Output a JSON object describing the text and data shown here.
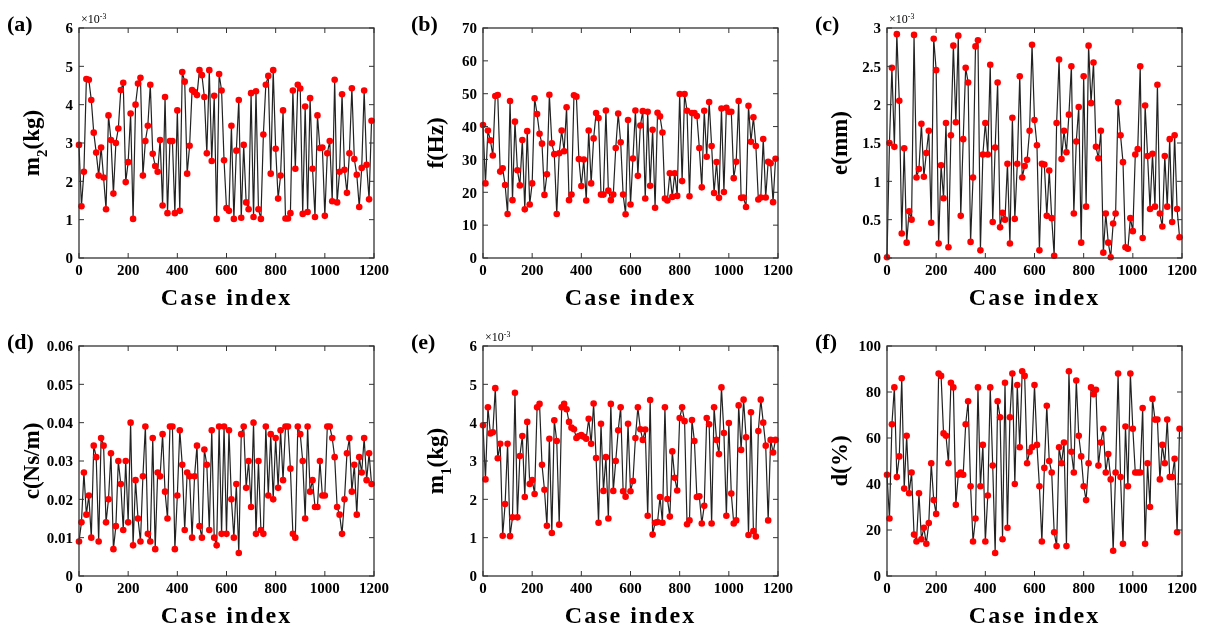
{
  "chart_data": [
    {
      "type": "line",
      "title": "(a)",
      "xlabel": "Case index",
      "ylabel": "m$_{2}$(kg)",
      "annotations": [
        "×10$^{-3}$"
      ],
      "marker": "circle",
      "xlim": [
        0,
        1200
      ],
      "xticks": [
        0,
        200,
        400,
        600,
        800,
        1000,
        1200
      ],
      "ylim": [
        0,
        6
      ],
      "yticks": [
        0,
        1,
        2,
        3,
        4,
        5,
        6
      ],
      "x": [
        0,
        10,
        20,
        30,
        40,
        50,
        60,
        70,
        80,
        90,
        100,
        110,
        120,
        130,
        140,
        150,
        160,
        170,
        180,
        190,
        200,
        210,
        220,
        230,
        240,
        250,
        260,
        270,
        280,
        290,
        300,
        310,
        320,
        330,
        340,
        350,
        360,
        370,
        380,
        390,
        400,
        410,
        420,
        430,
        440,
        450,
        460,
        470,
        480,
        490,
        500,
        510,
        520,
        530,
        540,
        550,
        560,
        570,
        580,
        590,
        600,
        610,
        620,
        630,
        640,
        650,
        660,
        670,
        680,
        690,
        700,
        710,
        720,
        730,
        740,
        750,
        760,
        770,
        780,
        790,
        800,
        810,
        820,
        830,
        840,
        850,
        860,
        870,
        880,
        890,
        900,
        910,
        920,
        930,
        940,
        950,
        960,
        970,
        980,
        990,
        1000,
        1010,
        1020,
        1030,
        1040,
        1050,
        1060,
        1070,
        1080,
        1090,
        1100,
        1110,
        1120,
        1130,
        1140,
        1150,
        1160,
        1170,
        1180,
        1190
      ],
      "series": [
        {
          "color": "#ff0000",
          "values": [
            2.95,
            1.35,
            2.25,
            4.67,
            4.65,
            4.12,
            3.27,
            2.75,
            2.15,
            2.88,
            2.1,
            1.27,
            3.72,
            3.08,
            1.68,
            3.0,
            3.38,
            4.38,
            4.57,
            1.98,
            2.5,
            3.77,
            1.02,
            4.0,
            4.55,
            4.7,
            2.15,
            3.05,
            3.45,
            4.52,
            2.72,
            2.4,
            2.25,
            3.08,
            1.37,
            4.2,
            1.17,
            3.05,
            3.05,
            1.17,
            3.85,
            1.23,
            4.85,
            4.6,
            2.2,
            2.93,
            4.38,
            4.33,
            4.25,
            4.9,
            4.77,
            4.2,
            2.73,
            4.9,
            2.53,
            4.23,
            1.02,
            4.8,
            4.37,
            2.55,
            1.3,
            1.23,
            3.45,
            1.02,
            2.8,
            4.12,
            1.05,
            2.95,
            1.45,
            1.27,
            4.3,
            1.07,
            4.35,
            1.27,
            1.02,
            3.22,
            4.52,
            4.75,
            2.2,
            4.9,
            2.85,
            1.55,
            2.15,
            3.85,
            1.03,
            1.03,
            1.17,
            4.37,
            2.33,
            4.52,
            4.42,
            1.15,
            3.95,
            1.2,
            4.17,
            2.33,
            1.07,
            3.72,
            2.87,
            2.88,
            1.1,
            2.73,
            3.05,
            1.48,
            4.65,
            1.45,
            2.25,
            4.27,
            2.3,
            1.7,
            2.73,
            4.43,
            2.58,
            2.17,
            1.33,
            2.35,
            4.37,
            2.43,
            1.53,
            3.58
          ]
        }
      ]
    },
    {
      "type": "line",
      "title": "(b)",
      "xlabel": "Case index",
      "ylabel": "f(Hz)",
      "marker": "circle",
      "xlim": [
        0,
        1200
      ],
      "xticks": [
        0,
        200,
        400,
        600,
        800,
        1000,
        1200
      ],
      "ylim": [
        0,
        70
      ],
      "yticks": [
        0,
        10,
        20,
        30,
        40,
        50,
        60,
        70
      ],
      "x": [
        0,
        10,
        20,
        30,
        40,
        50,
        60,
        70,
        80,
        90,
        100,
        110,
        120,
        130,
        140,
        150,
        160,
        170,
        180,
        190,
        200,
        210,
        220,
        230,
        240,
        250,
        260,
        270,
        280,
        290,
        300,
        310,
        320,
        330,
        340,
        350,
        360,
        370,
        380,
        390,
        400,
        410,
        420,
        430,
        440,
        450,
        460,
        470,
        480,
        490,
        500,
        510,
        520,
        530,
        540,
        550,
        560,
        570,
        580,
        590,
        600,
        610,
        620,
        630,
        640,
        650,
        660,
        670,
        680,
        690,
        700,
        710,
        720,
        730,
        740,
        750,
        760,
        770,
        780,
        790,
        800,
        810,
        820,
        830,
        840,
        850,
        860,
        870,
        880,
        890,
        900,
        910,
        920,
        930,
        940,
        950,
        960,
        970,
        980,
        990,
        1000,
        1010,
        1020,
        1030,
        1040,
        1050,
        1060,
        1070,
        1080,
        1090,
        1100,
        1110,
        1120,
        1130,
        1140,
        1150,
        1160,
        1170,
        1180,
        1190
      ],
      "series": [
        {
          "color": "#ff0000",
          "values": [
            40.5,
            22.7,
            38.8,
            35.8,
            31.2,
            49.3,
            49.6,
            26.3,
            27.3,
            22.2,
            13.4,
            47.8,
            17.6,
            41.5,
            26.7,
            22.1,
            35.9,
            14.8,
            38.6,
            16.3,
            22.7,
            48.6,
            43.8,
            37.8,
            34.8,
            19.2,
            25.5,
            49.7,
            34.9,
            31.6,
            13.4,
            31.9,
            38.8,
            32.5,
            45.9,
            17.6,
            19.3,
            49.5,
            49.1,
            30.1,
            21.9,
            30.0,
            17.5,
            38.8,
            22.7,
            36.4,
            44.1,
            42.6,
            19.3,
            19.3,
            44.9,
            20.5,
            17.6,
            19.3,
            33.5,
            44.0,
            35.2,
            19.3,
            13.3,
            42.0,
            16.3,
            30.3,
            44.9,
            25.0,
            40.3,
            44.7,
            18.1,
            44.5,
            22.0,
            39.0,
            15.3,
            44.2,
            43.1,
            38.2,
            18.1,
            17.5,
            25.8,
            18.6,
            25.8,
            18.9,
            49.9,
            23.4,
            49.9,
            44.8,
            18.8,
            44.1,
            44.1,
            43.2,
            33.5,
            21.5,
            44.8,
            30.8,
            47.5,
            34.1,
            19.8,
            29.2,
            18.3,
            45.5,
            20.1,
            45.7,
            44.5,
            44.5,
            24.3,
            29.3,
            47.8,
            18.3,
            18.4,
            15.5,
            46.3,
            35.4,
            42.8,
            34.1,
            17.8,
            18.4,
            36.2,
            18.4,
            29.3,
            28.8,
            17.0,
            30.2
          ]
        }
      ]
    },
    {
      "type": "line",
      "title": "(c)",
      "xlabel": "Case index",
      "ylabel": "e(mm)",
      "annotations": [
        "×10$^{-3}$"
      ],
      "marker": "circle",
      "xlim": [
        0,
        1200
      ],
      "xticks": [
        0,
        200,
        400,
        600,
        800,
        1000,
        1200
      ],
      "ylim": [
        0,
        3
      ],
      "yticks": [
        0,
        0.5,
        1,
        1.5,
        2,
        2.5,
        3
      ],
      "x": [
        0,
        10,
        20,
        30,
        40,
        50,
        60,
        70,
        80,
        90,
        100,
        110,
        120,
        130,
        140,
        150,
        160,
        170,
        180,
        190,
        200,
        210,
        220,
        230,
        240,
        250,
        260,
        270,
        280,
        290,
        300,
        310,
        320,
        330,
        340,
        350,
        360,
        370,
        380,
        390,
        400,
        410,
        420,
        430,
        440,
        450,
        460,
        470,
        480,
        490,
        500,
        510,
        520,
        530,
        540,
        550,
        560,
        570,
        580,
        590,
        600,
        610,
        620,
        630,
        640,
        650,
        660,
        670,
        680,
        690,
        700,
        710,
        720,
        730,
        740,
        750,
        760,
        770,
        780,
        790,
        800,
        810,
        820,
        830,
        840,
        850,
        860,
        870,
        880,
        890,
        900,
        910,
        920,
        930,
        940,
        950,
        960,
        970,
        980,
        990,
        1000,
        1010,
        1020,
        1030,
        1040,
        1050,
        1060,
        1070,
        1080,
        1090,
        1100,
        1110,
        1120,
        1130,
        1140,
        1150,
        1160,
        1170,
        1180,
        1190
      ],
      "series": [
        {
          "color": "#ff0000",
          "values": [
            0.01,
            1.5,
            2.48,
            1.45,
            2.92,
            2.05,
            0.32,
            1.43,
            0.2,
            0.61,
            0.5,
            2.91,
            1.05,
            1.16,
            1.75,
            1.06,
            1.37,
            1.66,
            0.46,
            2.86,
            2.45,
            0.19,
            1.21,
            0.78,
            1.76,
            0.14,
            1.6,
            2.77,
            1.77,
            2.9,
            0.55,
            1.55,
            2.48,
            2.29,
            0.21,
            1.05,
            2.76,
            2.84,
            0.1,
            1.35,
            1.76,
            1.35,
            2.52,
            0.47,
            1.44,
            2.29,
            0.4,
            0.59,
            0.5,
            1.23,
            0.19,
            1.83,
            0.51,
            1.23,
            2.37,
            1.05,
            1.2,
            1.28,
            1.66,
            2.78,
            1.8,
            1.47,
            0.1,
            1.23,
            1.22,
            0.55,
            1.14,
            0.52,
            0.03,
            1.76,
            2.59,
            1.29,
            1.66,
            1.38,
            1.87,
            2.5,
            0.58,
            1.52,
            1.97,
            0.2,
            2.37,
            0.67,
            2.77,
            2.02,
            2.55,
            1.45,
            1.3,
            1.66,
            0.07,
            0.58,
            0.2,
            0.01,
            0.45,
            0.58,
            2.03,
            1.6,
            1.25,
            0.14,
            0.12,
            0.52,
            0.35,
            1.35,
            1.42,
            2.5,
            0.26,
            1.99,
            1.33,
            0.64,
            1.36,
            0.67,
            2.26,
            0.58,
            0.41,
            1.33,
            0.67,
            1.55,
            0.47,
            1.6,
            0.64,
            0.27
          ]
        }
      ]
    },
    {
      "type": "line",
      "title": "(d)",
      "xlabel": "Case index",
      "ylabel": "c(Ns/m)",
      "marker": "circle",
      "xlim": [
        0,
        1200
      ],
      "xticks": [
        0,
        200,
        400,
        600,
        800,
        1000,
        1200
      ],
      "ylim": [
        0,
        0.06
      ],
      "yticks": [
        0,
        0.01,
        0.02,
        0.03,
        0.04,
        0.05,
        0.06
      ],
      "x": [
        0,
        10,
        20,
        30,
        40,
        50,
        60,
        70,
        80,
        90,
        100,
        110,
        120,
        130,
        140,
        150,
        160,
        170,
        180,
        190,
        200,
        210,
        220,
        230,
        240,
        250,
        260,
        270,
        280,
        290,
        300,
        310,
        320,
        330,
        340,
        350,
        360,
        370,
        380,
        390,
        400,
        410,
        420,
        430,
        440,
        450,
        460,
        470,
        480,
        490,
        500,
        510,
        520,
        530,
        540,
        550,
        560,
        570,
        580,
        590,
        600,
        610,
        620,
        630,
        640,
        650,
        660,
        670,
        680,
        690,
        700,
        710,
        720,
        730,
        740,
        750,
        760,
        770,
        780,
        790,
        800,
        810,
        820,
        830,
        840,
        850,
        860,
        870,
        880,
        890,
        900,
        910,
        920,
        930,
        940,
        950,
        960,
        970,
        980,
        990,
        1000,
        1010,
        1020,
        1030,
        1040,
        1050,
        1060,
        1070,
        1080,
        1090,
        1100,
        1110,
        1120,
        1130,
        1140,
        1150,
        1160,
        1170,
        1180,
        1190
      ],
      "series": [
        {
          "color": "#ff0000",
          "values": [
            0.009,
            0.014,
            0.027,
            0.016,
            0.021,
            0.01,
            0.034,
            0.031,
            0.009,
            0.036,
            0.034,
            0.014,
            0.02,
            0.032,
            0.007,
            0.013,
            0.03,
            0.024,
            0.012,
            0.03,
            0.014,
            0.04,
            0.008,
            0.025,
            0.015,
            0.009,
            0.026,
            0.039,
            0.011,
            0.009,
            0.036,
            0.007,
            0.027,
            0.026,
            0.037,
            0.022,
            0.015,
            0.039,
            0.039,
            0.007,
            0.021,
            0.038,
            0.029,
            0.012,
            0.027,
            0.026,
            0.01,
            0.026,
            0.034,
            0.013,
            0.01,
            0.033,
            0.029,
            0.012,
            0.038,
            0.01,
            0.008,
            0.039,
            0.011,
            0.039,
            0.011,
            0.038,
            0.02,
            0.01,
            0.024,
            0.006,
            0.037,
            0.039,
            0.023,
            0.03,
            0.018,
            0.04,
            0.011,
            0.03,
            0.012,
            0.011,
            0.039,
            0.021,
            0.037,
            0.02,
            0.036,
            0.023,
            0.038,
            0.025,
            0.039,
            0.039,
            0.028,
            0.011,
            0.01,
            0.039,
            0.037,
            0.03,
            0.015,
            0.039,
            0.022,
            0.025,
            0.018,
            0.018,
            0.03,
            0.021,
            0.021,
            0.039,
            0.039,
            0.036,
            0.031,
            0.018,
            0.016,
            0.011,
            0.02,
            0.032,
            0.036,
            0.022,
            0.029,
            0.016,
            0.031,
            0.027,
            0.036,
            0.025,
            0.032,
            0.024
          ]
        }
      ]
    },
    {
      "type": "line",
      "title": "(e)",
      "xlabel": "Case index",
      "ylabel": "m$_{1}$(kg)",
      "annotations": [
        "×10$^{-3}$"
      ],
      "marker": "circle",
      "xlim": [
        0,
        1200
      ],
      "xticks": [
        0,
        200,
        400,
        600,
        800,
        1000,
        1200
      ],
      "ylim": [
        0,
        6
      ],
      "yticks": [
        0,
        1,
        2,
        3,
        4,
        5,
        6
      ],
      "x": [
        0,
        10,
        20,
        30,
        40,
        50,
        60,
        70,
        80,
        90,
        100,
        110,
        120,
        130,
        140,
        150,
        160,
        170,
        180,
        190,
        200,
        210,
        220,
        230,
        240,
        250,
        260,
        270,
        280,
        290,
        300,
        310,
        320,
        330,
        340,
        350,
        360,
        370,
        380,
        390,
        400,
        410,
        420,
        430,
        440,
        450,
        460,
        470,
        480,
        490,
        500,
        510,
        520,
        530,
        540,
        550,
        560,
        570,
        580,
        590,
        600,
        610,
        620,
        630,
        640,
        650,
        660,
        670,
        680,
        690,
        700,
        710,
        720,
        730,
        740,
        750,
        760,
        770,
        780,
        790,
        800,
        810,
        820,
        830,
        840,
        850,
        860,
        870,
        880,
        890,
        900,
        910,
        920,
        930,
        940,
        950,
        960,
        970,
        980,
        990,
        1000,
        1010,
        1020,
        1030,
        1040,
        1050,
        1060,
        1070,
        1080,
        1090,
        1100,
        1110,
        1120,
        1130,
        1140,
        1150,
        1160,
        1170,
        1180,
        1190
      ],
      "series": [
        {
          "color": "#ff0000",
          "values": [
            3.93,
            2.52,
            4.4,
            3.72,
            3.75,
            4.9,
            3.07,
            3.45,
            1.05,
            1.88,
            3.45,
            1.04,
            1.53,
            4.78,
            1.53,
            3.13,
            3.65,
            2.06,
            4.02,
            2.4,
            2.5,
            2.14,
            4.4,
            4.49,
            2.9,
            2.25,
            1.31,
            3.58,
            1.12,
            4.06,
            3.52,
            1.34,
            4.4,
            4.49,
            4.35,
            4.02,
            3.87,
            3.83,
            3.6,
            3.65,
            3.68,
            3.63,
            3.58,
            4.1,
            3.45,
            4.5,
            3.08,
            1.39,
            3.97,
            2.22,
            3.1,
            1.5,
            4.49,
            2.22,
            3.0,
            3.8,
            4.4,
            2.21,
            2.07,
            3.97,
            2.21,
            2.48,
            3.6,
            4.4,
            3.83,
            3.55,
            3.82,
            1.57,
            4.59,
            1.08,
            1.39,
            1.41,
            2.06,
            1.39,
            4.4,
            2.01,
            1.55,
            3.25,
            2.56,
            2.23,
            4.12,
            4.4,
            4.04,
            1.35,
            1.45,
            4.07,
            3.52,
            2.06,
            2.08,
            1.37,
            1.83,
            4.12,
            3.96,
            1.37,
            4.4,
            3.55,
            3.18,
            4.92,
            3.73,
            1.57,
            3.99,
            2.15,
            1.37,
            1.45,
            4.45,
            3.29,
            4.6,
            3.62,
            1.07,
            4.27,
            1.17,
            1.03,
            3.78,
            4.6,
            4.0,
            3.4,
            1.45,
            3.55,
            3.22,
            3.55
          ]
        }
      ]
    },
    {
      "type": "line",
      "title": "(f)",
      "xlabel": "Case index",
      "ylabel": "d(%)",
      "marker": "circle",
      "xlim": [
        0,
        1200
      ],
      "xticks": [
        0,
        200,
        400,
        600,
        800,
        1000,
        1200
      ],
      "ylim": [
        0,
        100
      ],
      "yticks": [
        0,
        20,
        40,
        60,
        80,
        100
      ],
      "x": [
        0,
        10,
        20,
        30,
        40,
        50,
        60,
        70,
        80,
        90,
        100,
        110,
        120,
        130,
        140,
        150,
        160,
        170,
        180,
        190,
        200,
        210,
        220,
        230,
        240,
        250,
        260,
        270,
        280,
        290,
        300,
        310,
        320,
        330,
        340,
        350,
        360,
        370,
        380,
        390,
        400,
        410,
        420,
        430,
        440,
        450,
        460,
        470,
        480,
        490,
        500,
        510,
        520,
        530,
        540,
        550,
        560,
        570,
        580,
        590,
        600,
        610,
        620,
        630,
        640,
        650,
        660,
        670,
        680,
        690,
        700,
        710,
        720,
        730,
        740,
        750,
        760,
        770,
        780,
        790,
        800,
        810,
        820,
        830,
        840,
        850,
        860,
        870,
        880,
        890,
        900,
        910,
        920,
        930,
        940,
        950,
        960,
        970,
        980,
        990,
        1000,
        1010,
        1020,
        1030,
        1040,
        1050,
        1060,
        1070,
        1080,
        1090,
        1100,
        1110,
        1120,
        1130,
        1140,
        1150,
        1160,
        1170,
        1180,
        1190
      ],
      "series": [
        {
          "color": "#ff0000",
          "values": [
            44,
            25,
            66,
            82,
            43,
            52,
            86,
            38,
            61,
            36,
            45,
            18,
            15,
            36,
            16,
            21,
            14,
            23,
            49,
            33,
            27,
            88,
            87,
            62,
            61,
            49,
            84,
            82,
            31,
            44,
            45,
            44,
            66,
            76,
            39,
            15,
            25,
            82,
            39,
            57,
            15,
            35,
            82,
            48,
            10,
            76,
            69,
            16,
            84,
            21,
            69,
            88,
            40,
            83,
            56,
            89,
            87,
            49,
            54,
            56,
            83,
            57,
            39,
            15,
            47,
            74,
            50,
            45,
            19,
            13,
            56,
            49,
            58,
            13,
            89,
            54,
            45,
            85,
            61,
            52,
            39,
            33,
            49,
            82,
            79,
            81,
            48,
            58,
            64,
            45,
            53,
            42,
            11,
            45,
            88,
            43,
            14,
            65,
            39,
            88,
            64,
            45,
            45,
            45,
            73,
            14,
            49,
            30,
            77,
            68,
            68,
            42,
            57,
            49,
            68,
            43,
            43,
            51,
            19,
            64
          ]
        }
      ]
    }
  ]
}
